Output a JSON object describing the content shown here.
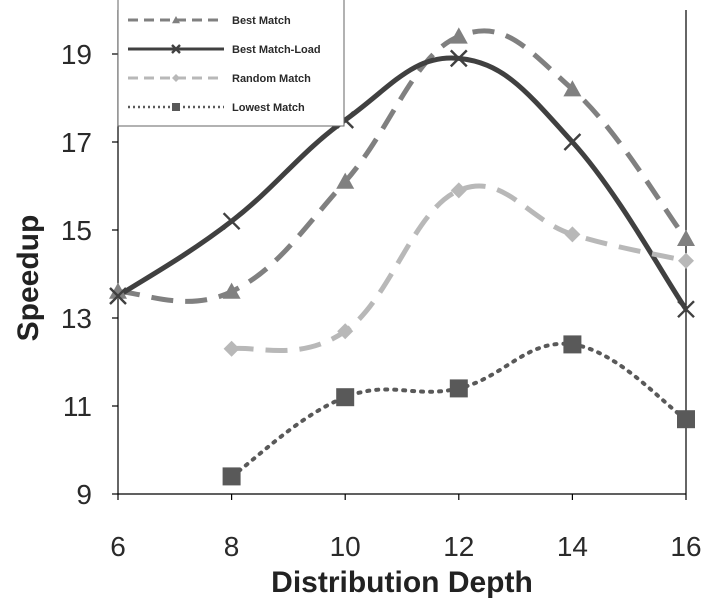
{
  "chart_data": {
    "type": "line",
    "xlabel": "Distribution Depth",
    "ylabel": "Speedup",
    "xlim": [
      6,
      16
    ],
    "ylim": [
      9,
      20
    ],
    "x_ticks": [
      6,
      8,
      10,
      12,
      14,
      16
    ],
    "y_ticks": [
      9,
      11,
      13,
      15,
      17,
      19
    ],
    "grid": false,
    "legend_position": "top-left",
    "series": [
      {
        "name": "Best Match",
        "x": [
          6,
          8,
          10,
          12,
          14,
          16
        ],
        "values": [
          13.6,
          13.6,
          16.1,
          19.4,
          18.2,
          14.8
        ],
        "color": "#808080",
        "line_style": "dashed",
        "marker": "triangle"
      },
      {
        "name": "Best Match-Load",
        "x": [
          6,
          8,
          10,
          12,
          14,
          16
        ],
        "values": [
          13.5,
          15.2,
          17.5,
          18.9,
          17.0,
          13.2
        ],
        "color": "#404040",
        "line_style": "solid",
        "marker": "x"
      },
      {
        "name": "Random  Match",
        "x": [
          8,
          10,
          12,
          14,
          16
        ],
        "values": [
          12.3,
          12.7,
          15.9,
          14.9,
          14.3
        ],
        "color": "#b8b8b8",
        "line_style": "dashed",
        "marker": "diamond"
      },
      {
        "name": "Lowest Match",
        "x": [
          8,
          10,
          12,
          14,
          16
        ],
        "values": [
          9.4,
          11.2,
          11.4,
          12.4,
          10.7
        ],
        "color": "#595959",
        "line_style": "dotted",
        "marker": "square"
      }
    ]
  }
}
